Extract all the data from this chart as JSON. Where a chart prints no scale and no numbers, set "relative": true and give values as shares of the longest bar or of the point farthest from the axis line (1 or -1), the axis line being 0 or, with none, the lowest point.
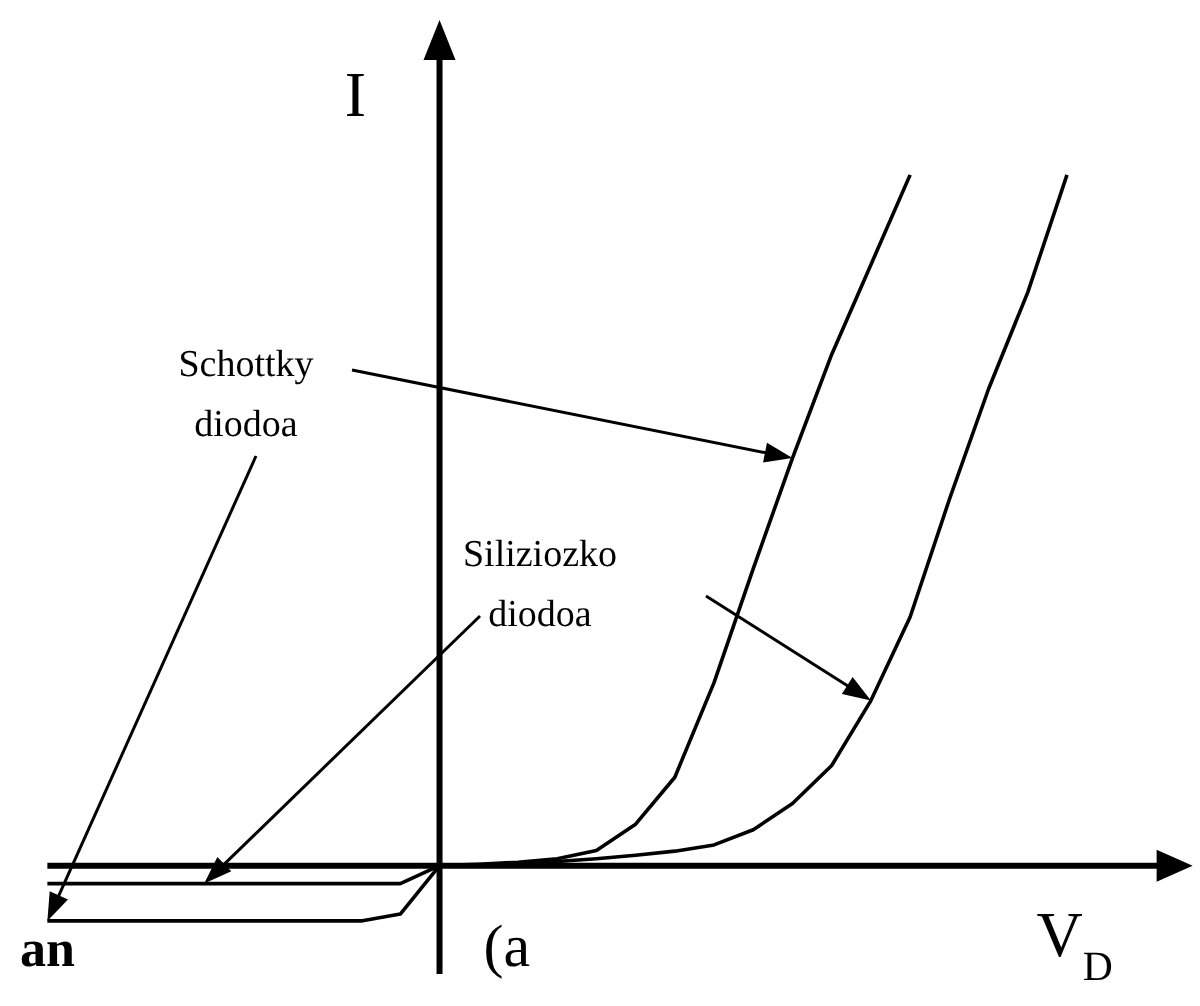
{
  "chart_data": {
    "type": "line",
    "relative": true,
    "xlabel": "V$_{D}$",
    "ylabel": "I",
    "tick_labels": false,
    "grid": false,
    "legend": false,
    "marker": "none",
    "line_style": "solid",
    "categories": [
      null,
      null,
      null,
      null,
      null,
      null,
      null,
      null,
      null,
      null,
      null,
      null,
      null,
      null,
      null,
      null,
      null,
      null,
      null,
      null,
      null,
      null,
      null,
      null,
      null,
      null,
      null,
      null,
      null,
      null
    ],
    "series": [
      {
        "color": "#000000",
        "values": [
          -0.08,
          -0.08,
          -0.08,
          -0.08,
          -0.08,
          -0.08,
          -0.08,
          -0.08,
          -0.08,
          -0.07,
          0,
          0.002,
          0.005,
          0.01,
          0.022,
          0.06,
          0.128,
          0.265,
          0.43,
          0.59,
          0.74,
          0.87,
          1.0,
          null,
          null,
          null,
          null,
          null,
          null,
          null
        ]
      },
      {
        "color": "#000000",
        "values": [
          -0.026,
          -0.026,
          -0.026,
          -0.026,
          -0.026,
          -0.026,
          -0.026,
          -0.026,
          -0.026,
          -0.026,
          0,
          0.001,
          0.003,
          0.006,
          0.01,
          0.015,
          0.021,
          0.03,
          0.052,
          0.09,
          0.145,
          0.239,
          0.36,
          0.53,
          0.69,
          0.83,
          1.0,
          null,
          null,
          null
        ]
      }
    ],
    "annotations": [
      "Schottky diodoa",
      "Siliziozko diodoa",
      "an",
      "(a"
    ]
  }
}
